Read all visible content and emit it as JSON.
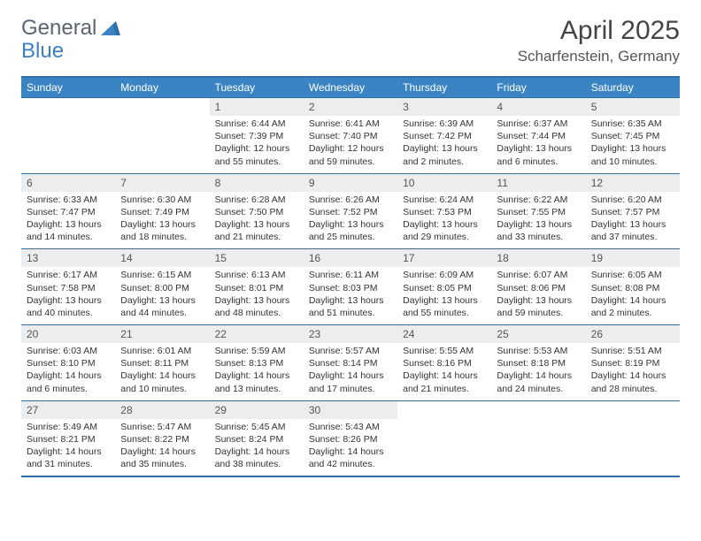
{
  "brand": {
    "part1": "General",
    "part2": "Blue"
  },
  "title": "April 2025",
  "location": "Scharfenstein, Germany",
  "colors": {
    "header_bg": "#3b84c4",
    "border": "#2f6fa8",
    "daynum_bg": "#ebedef",
    "text": "#333333",
    "logo_gray": "#5a6570",
    "logo_blue": "#3b7fc4"
  },
  "weekdays": [
    "Sunday",
    "Monday",
    "Tuesday",
    "Wednesday",
    "Thursday",
    "Friday",
    "Saturday"
  ],
  "weeks": [
    {
      "nums": [
        "",
        "",
        "1",
        "2",
        "3",
        "4",
        "5"
      ],
      "cells": [
        {
          "sunrise": "",
          "sunset": "",
          "daylight": ""
        },
        {
          "sunrise": "",
          "sunset": "",
          "daylight": ""
        },
        {
          "sunrise": "Sunrise: 6:44 AM",
          "sunset": "Sunset: 7:39 PM",
          "daylight": "Daylight: 12 hours and 55 minutes."
        },
        {
          "sunrise": "Sunrise: 6:41 AM",
          "sunset": "Sunset: 7:40 PM",
          "daylight": "Daylight: 12 hours and 59 minutes."
        },
        {
          "sunrise": "Sunrise: 6:39 AM",
          "sunset": "Sunset: 7:42 PM",
          "daylight": "Daylight: 13 hours and 2 minutes."
        },
        {
          "sunrise": "Sunrise: 6:37 AM",
          "sunset": "Sunset: 7:44 PM",
          "daylight": "Daylight: 13 hours and 6 minutes."
        },
        {
          "sunrise": "Sunrise: 6:35 AM",
          "sunset": "Sunset: 7:45 PM",
          "daylight": "Daylight: 13 hours and 10 minutes."
        }
      ]
    },
    {
      "nums": [
        "6",
        "7",
        "8",
        "9",
        "10",
        "11",
        "12"
      ],
      "cells": [
        {
          "sunrise": "Sunrise: 6:33 AM",
          "sunset": "Sunset: 7:47 PM",
          "daylight": "Daylight: 13 hours and 14 minutes."
        },
        {
          "sunrise": "Sunrise: 6:30 AM",
          "sunset": "Sunset: 7:49 PM",
          "daylight": "Daylight: 13 hours and 18 minutes."
        },
        {
          "sunrise": "Sunrise: 6:28 AM",
          "sunset": "Sunset: 7:50 PM",
          "daylight": "Daylight: 13 hours and 21 minutes."
        },
        {
          "sunrise": "Sunrise: 6:26 AM",
          "sunset": "Sunset: 7:52 PM",
          "daylight": "Daylight: 13 hours and 25 minutes."
        },
        {
          "sunrise": "Sunrise: 6:24 AM",
          "sunset": "Sunset: 7:53 PM",
          "daylight": "Daylight: 13 hours and 29 minutes."
        },
        {
          "sunrise": "Sunrise: 6:22 AM",
          "sunset": "Sunset: 7:55 PM",
          "daylight": "Daylight: 13 hours and 33 minutes."
        },
        {
          "sunrise": "Sunrise: 6:20 AM",
          "sunset": "Sunset: 7:57 PM",
          "daylight": "Daylight: 13 hours and 37 minutes."
        }
      ]
    },
    {
      "nums": [
        "13",
        "14",
        "15",
        "16",
        "17",
        "18",
        "19"
      ],
      "cells": [
        {
          "sunrise": "Sunrise: 6:17 AM",
          "sunset": "Sunset: 7:58 PM",
          "daylight": "Daylight: 13 hours and 40 minutes."
        },
        {
          "sunrise": "Sunrise: 6:15 AM",
          "sunset": "Sunset: 8:00 PM",
          "daylight": "Daylight: 13 hours and 44 minutes."
        },
        {
          "sunrise": "Sunrise: 6:13 AM",
          "sunset": "Sunset: 8:01 PM",
          "daylight": "Daylight: 13 hours and 48 minutes."
        },
        {
          "sunrise": "Sunrise: 6:11 AM",
          "sunset": "Sunset: 8:03 PM",
          "daylight": "Daylight: 13 hours and 51 minutes."
        },
        {
          "sunrise": "Sunrise: 6:09 AM",
          "sunset": "Sunset: 8:05 PM",
          "daylight": "Daylight: 13 hours and 55 minutes."
        },
        {
          "sunrise": "Sunrise: 6:07 AM",
          "sunset": "Sunset: 8:06 PM",
          "daylight": "Daylight: 13 hours and 59 minutes."
        },
        {
          "sunrise": "Sunrise: 6:05 AM",
          "sunset": "Sunset: 8:08 PM",
          "daylight": "Daylight: 14 hours and 2 minutes."
        }
      ]
    },
    {
      "nums": [
        "20",
        "21",
        "22",
        "23",
        "24",
        "25",
        "26"
      ],
      "cells": [
        {
          "sunrise": "Sunrise: 6:03 AM",
          "sunset": "Sunset: 8:10 PM",
          "daylight": "Daylight: 14 hours and 6 minutes."
        },
        {
          "sunrise": "Sunrise: 6:01 AM",
          "sunset": "Sunset: 8:11 PM",
          "daylight": "Daylight: 14 hours and 10 minutes."
        },
        {
          "sunrise": "Sunrise: 5:59 AM",
          "sunset": "Sunset: 8:13 PM",
          "daylight": "Daylight: 14 hours and 13 minutes."
        },
        {
          "sunrise": "Sunrise: 5:57 AM",
          "sunset": "Sunset: 8:14 PM",
          "daylight": "Daylight: 14 hours and 17 minutes."
        },
        {
          "sunrise": "Sunrise: 5:55 AM",
          "sunset": "Sunset: 8:16 PM",
          "daylight": "Daylight: 14 hours and 21 minutes."
        },
        {
          "sunrise": "Sunrise: 5:53 AM",
          "sunset": "Sunset: 8:18 PM",
          "daylight": "Daylight: 14 hours and 24 minutes."
        },
        {
          "sunrise": "Sunrise: 5:51 AM",
          "sunset": "Sunset: 8:19 PM",
          "daylight": "Daylight: 14 hours and 28 minutes."
        }
      ]
    },
    {
      "nums": [
        "27",
        "28",
        "29",
        "30",
        "",
        "",
        ""
      ],
      "cells": [
        {
          "sunrise": "Sunrise: 5:49 AM",
          "sunset": "Sunset: 8:21 PM",
          "daylight": "Daylight: 14 hours and 31 minutes."
        },
        {
          "sunrise": "Sunrise: 5:47 AM",
          "sunset": "Sunset: 8:22 PM",
          "daylight": "Daylight: 14 hours and 35 minutes."
        },
        {
          "sunrise": "Sunrise: 5:45 AM",
          "sunset": "Sunset: 8:24 PM",
          "daylight": "Daylight: 14 hours and 38 minutes."
        },
        {
          "sunrise": "Sunrise: 5:43 AM",
          "sunset": "Sunset: 8:26 PM",
          "daylight": "Daylight: 14 hours and 42 minutes."
        },
        {
          "sunrise": "",
          "sunset": "",
          "daylight": ""
        },
        {
          "sunrise": "",
          "sunset": "",
          "daylight": ""
        },
        {
          "sunrise": "",
          "sunset": "",
          "daylight": ""
        }
      ]
    }
  ]
}
